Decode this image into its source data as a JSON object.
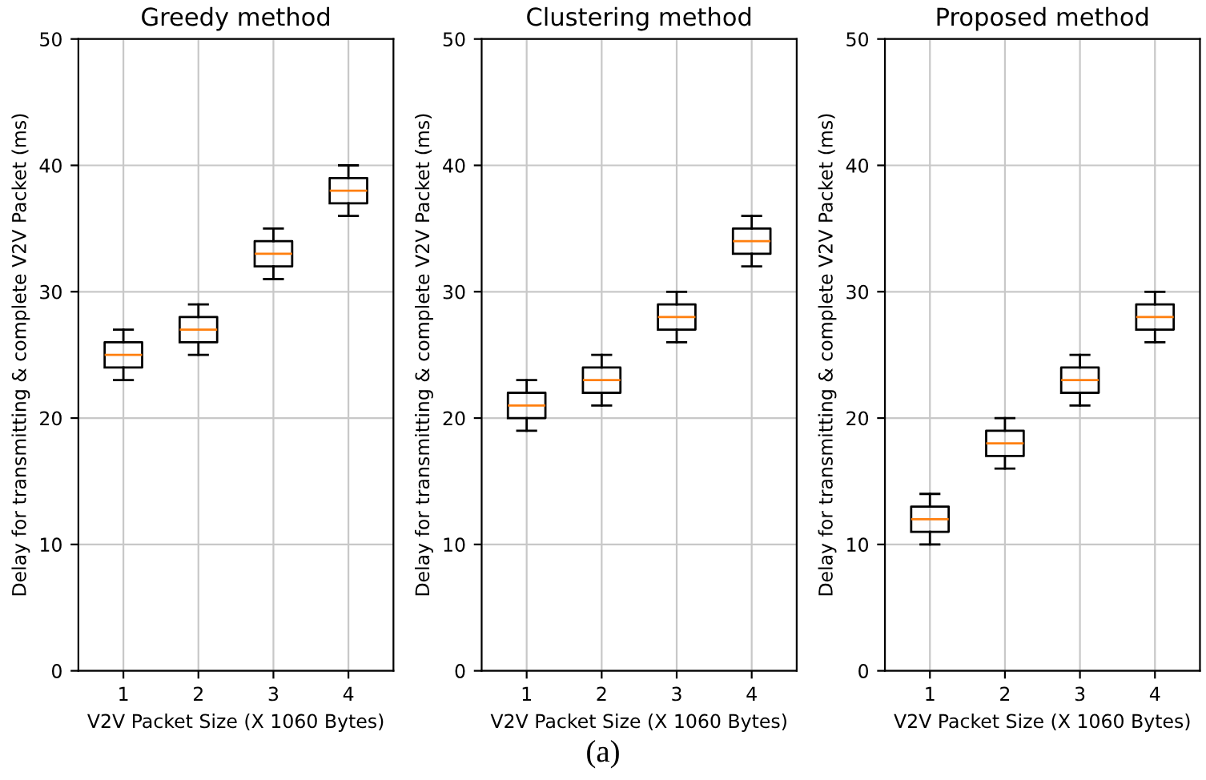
{
  "chart_data": [
    {
      "type": "box",
      "title": "Greedy method",
      "xlabel": "V2V Packet Size (X 1060 Bytes)",
      "ylabel": "Delay for transmitting & complete V2V Packet (ms)",
      "categories": [
        "1",
        "2",
        "3",
        "4"
      ],
      "ylim": [
        0,
        50
      ],
      "yticks": [
        0,
        10,
        20,
        30,
        40,
        50
      ],
      "grid": true,
      "boxes": [
        {
          "low": 23,
          "q1": 24,
          "median": 25,
          "q3": 26,
          "high": 27
        },
        {
          "low": 25,
          "q1": 26,
          "median": 27,
          "q3": 28,
          "high": 29
        },
        {
          "low": 31,
          "q1": 32,
          "median": 33,
          "q3": 34,
          "high": 35
        },
        {
          "low": 36,
          "q1": 37,
          "median": 38,
          "q3": 39,
          "high": 40
        }
      ]
    },
    {
      "type": "box",
      "title": "Clustering method",
      "xlabel": "V2V Packet Size (X 1060 Bytes)",
      "ylabel": "Delay for transmitting & complete V2V Packet (ms)",
      "categories": [
        "1",
        "2",
        "3",
        "4"
      ],
      "ylim": [
        0,
        50
      ],
      "yticks": [
        0,
        10,
        20,
        30,
        40,
        50
      ],
      "grid": true,
      "boxes": [
        {
          "low": 19,
          "q1": 20,
          "median": 21,
          "q3": 22,
          "high": 23
        },
        {
          "low": 21,
          "q1": 22,
          "median": 23,
          "q3": 24,
          "high": 25
        },
        {
          "low": 26,
          "q1": 27,
          "median": 28,
          "q3": 29,
          "high": 30
        },
        {
          "low": 32,
          "q1": 33,
          "median": 34,
          "q3": 35,
          "high": 36
        }
      ]
    },
    {
      "type": "box",
      "title": "Proposed method",
      "xlabel": "V2V Packet Size (X 1060 Bytes)",
      "ylabel": "Delay for transmitting & complete V2V Packet (ms)",
      "categories": [
        "1",
        "2",
        "3",
        "4"
      ],
      "ylim": [
        0,
        50
      ],
      "yticks": [
        0,
        10,
        20,
        30,
        40,
        50
      ],
      "grid": true,
      "annotations": [
        "(a)"
      ],
      "boxes": [
        {
          "low": 10,
          "q1": 11,
          "median": 12,
          "q3": 13,
          "high": 14
        },
        {
          "low": 16,
          "q1": 17,
          "median": 18,
          "q3": 19,
          "high": 20
        },
        {
          "low": 21,
          "q1": 22,
          "median": 23,
          "q3": 24,
          "high": 25
        },
        {
          "low": 26,
          "q1": 27,
          "median": 28,
          "q3": 29,
          "high": 30
        }
      ]
    }
  ]
}
